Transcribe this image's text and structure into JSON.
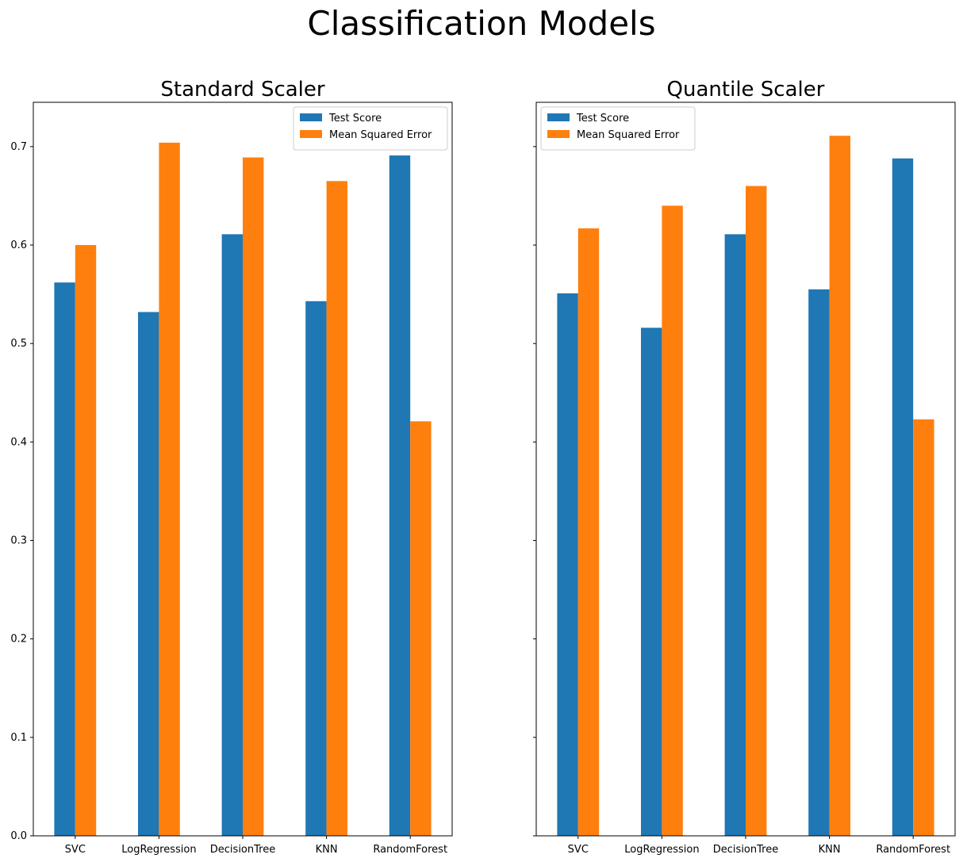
{
  "figure": {
    "suptitle": "Classification Models"
  },
  "colors": {
    "test_score": "#1f77b4",
    "mse": "#ff7f0e",
    "axes": "#000000",
    "legend_border": "#cccccc"
  },
  "chart_data": [
    {
      "type": "bar",
      "title": "Standard Scaler",
      "xlabel": "",
      "ylabel": "",
      "categories": [
        "SVC",
        "LogRegression",
        "DecisionTree",
        "KNN",
        "RandomForest"
      ],
      "series": [
        {
          "name": "Test Score",
          "values": [
            0.562,
            0.532,
            0.611,
            0.543,
            0.691
          ]
        },
        {
          "name": "Mean Squared Error",
          "values": [
            0.6,
            0.704,
            0.689,
            0.665,
            0.421
          ]
        }
      ],
      "ylim": [
        0,
        0.745
      ],
      "yticks": [
        "0.0",
        "0.1",
        "0.2",
        "0.3",
        "0.4",
        "0.5",
        "0.6",
        "0.7"
      ],
      "grid": false,
      "legend": "upper right"
    },
    {
      "type": "bar",
      "title": "Quantile Scaler",
      "xlabel": "",
      "ylabel": "",
      "categories": [
        "SVC",
        "LogRegression",
        "DecisionTree",
        "KNN",
        "RandomForest"
      ],
      "series": [
        {
          "name": "Test Score",
          "values": [
            0.551,
            0.516,
            0.611,
            0.555,
            0.688
          ]
        },
        {
          "name": "Mean Squared Error",
          "values": [
            0.617,
            0.64,
            0.66,
            0.711,
            0.423
          ]
        }
      ],
      "ylim": [
        0,
        0.745
      ],
      "yticks": [],
      "shared_y": true,
      "grid": false,
      "legend": "upper left"
    }
  ]
}
